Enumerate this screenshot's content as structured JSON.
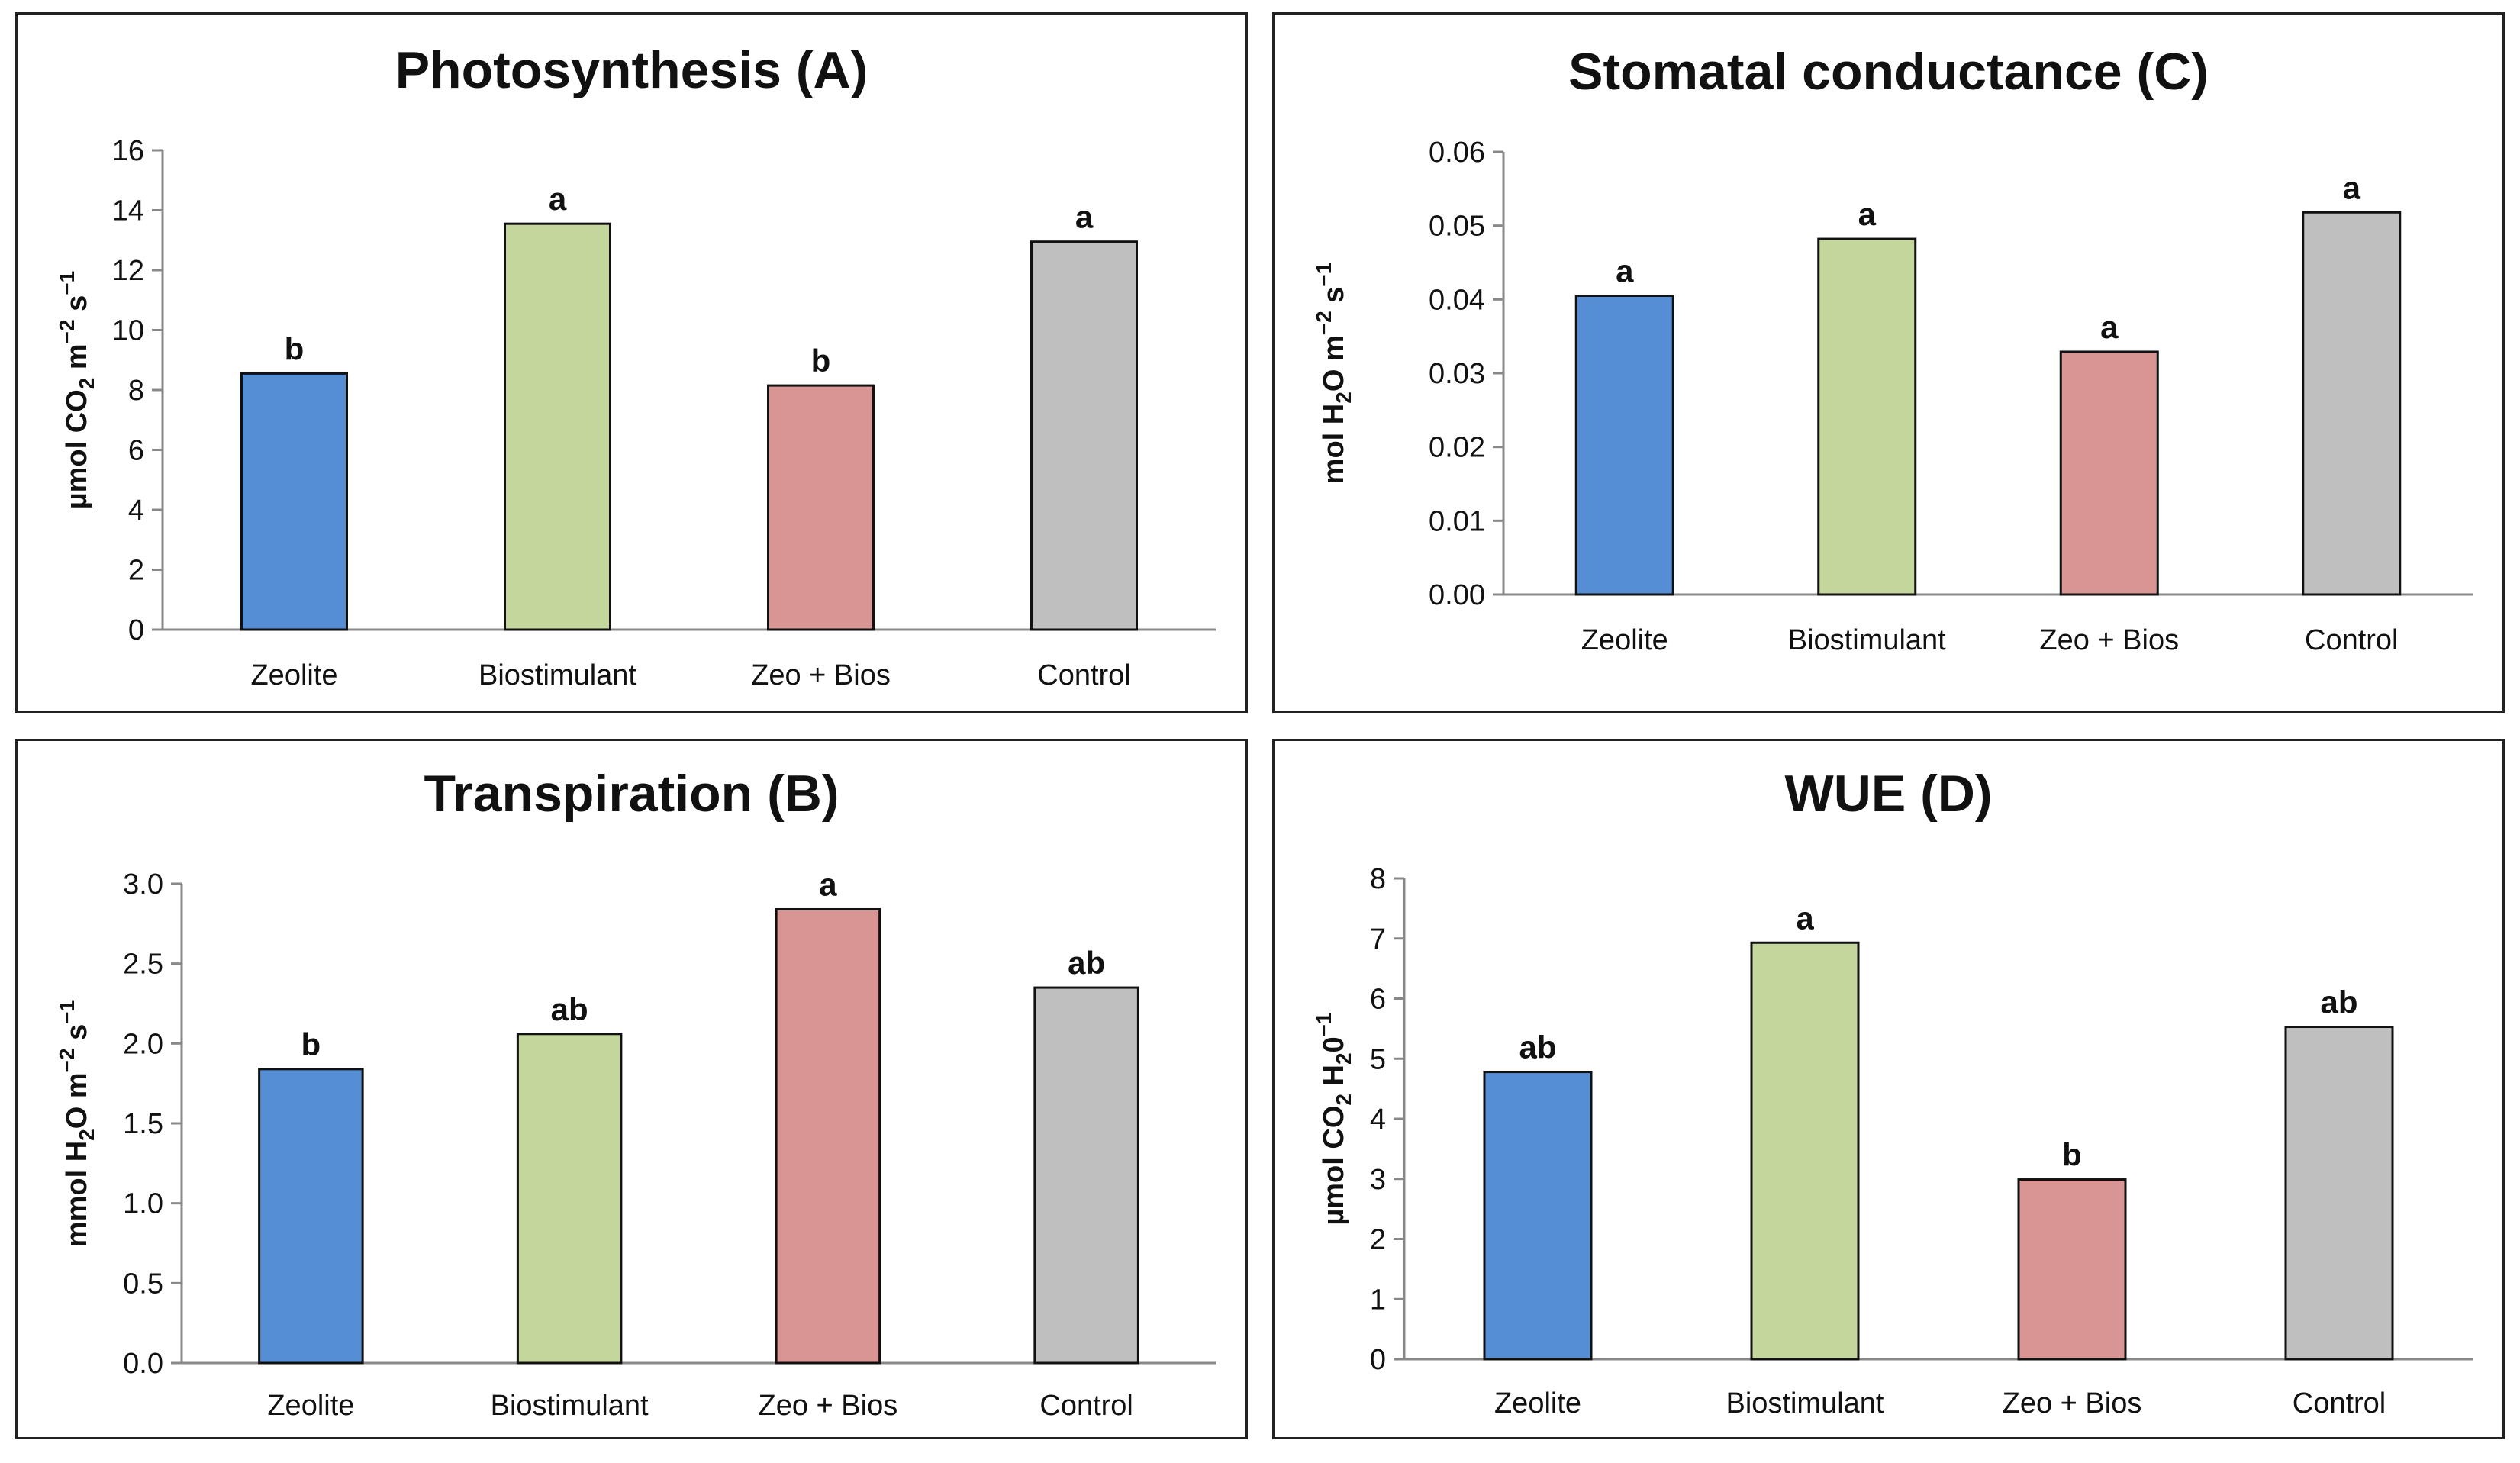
{
  "colors": {
    "Zeolite": "#558ed5",
    "Biostimulant": "#c3d69b",
    "Zeo + Bios": "#d99594",
    "Control": "#bfbfbf"
  },
  "chart_data": [
    {
      "id": "photosynthesis",
      "type": "bar",
      "title": "Photosynthesis (A)",
      "ylabel": {
        "pre": "µmol CO",
        "sub1": "2",
        "mid": " m",
        "sup1": "−2",
        "mid2": " s",
        "sup2": "−1"
      },
      "categories": [
        "Zeolite",
        "Biostimulant",
        "Zeo + Bios",
        "Control"
      ],
      "values": [
        8.55,
        13.55,
        8.15,
        12.95
      ],
      "significance": [
        "b",
        "a",
        "b",
        "a"
      ],
      "ylim": [
        0,
        16
      ],
      "yticks": [
        0,
        2,
        4,
        6,
        8,
        10,
        12,
        14,
        16
      ],
      "ytick_labels": [
        "0",
        "2",
        "4",
        "6",
        "8",
        "10",
        "12",
        "14",
        "16"
      ],
      "grid": false
    },
    {
      "id": "stomatal",
      "type": "bar",
      "title": "Stomatal conductance (C)",
      "ylabel": {
        "pre": "mol H",
        "sub1": "2",
        "mid": "O m",
        "sup1": "−2",
        "mid2": " s",
        "sup2": "−1"
      },
      "categories": [
        "Zeolite",
        "Biostimulant",
        "Zeo + Bios",
        "Control"
      ],
      "values": [
        0.0405,
        0.0482,
        0.0329,
        0.0518
      ],
      "significance": [
        "a",
        "a",
        "a",
        "a"
      ],
      "ylim": [
        0,
        0.06
      ],
      "yticks": [
        0,
        0.01,
        0.02,
        0.03,
        0.04,
        0.05,
        0.06
      ],
      "ytick_labels": [
        "0.00",
        "0.01",
        "0.02",
        "0.03",
        "0.04",
        "0.05",
        "0.06"
      ],
      "grid": false
    },
    {
      "id": "transpiration",
      "type": "bar",
      "title": "Transpiration (B)",
      "ylabel": {
        "pre": "mmol H",
        "sub1": "2",
        "mid": "O m",
        "sup1": "−2",
        "mid2": " s",
        "sup2": "−1"
      },
      "categories": [
        "Zeolite",
        "Biostimulant",
        "Zeo + Bios",
        "Control"
      ],
      "values": [
        1.84,
        2.06,
        2.84,
        2.35
      ],
      "significance": [
        "b",
        "ab",
        "a",
        "ab"
      ],
      "ylim": [
        0,
        3.0
      ],
      "yticks": [
        0,
        0.5,
        1.0,
        1.5,
        2.0,
        2.5,
        3.0
      ],
      "ytick_labels": [
        "0.0",
        "0.5",
        "1.0",
        "1.5",
        "2.0",
        "2.5",
        "3.0"
      ],
      "grid": false
    },
    {
      "id": "wue",
      "type": "bar",
      "title": "WUE (D)",
      "ylabel": {
        "pre": "µmol CO",
        "sub1": "2",
        "mid": " H",
        "sub2": "2",
        "mid2": "0",
        "sup2": "−1"
      },
      "categories": [
        "Zeolite",
        "Biostimulant",
        "Zeo + Bios",
        "Control"
      ],
      "values": [
        4.78,
        6.93,
        2.99,
        5.53
      ],
      "significance": [
        "ab",
        "a",
        "b",
        "ab"
      ],
      "ylim": [
        0,
        8
      ],
      "yticks": [
        0,
        1,
        2,
        3,
        4,
        5,
        6,
        7,
        8
      ],
      "ytick_labels": [
        "0",
        "1",
        "2",
        "3",
        "4",
        "5",
        "6",
        "7",
        "8"
      ],
      "grid": false
    }
  ]
}
